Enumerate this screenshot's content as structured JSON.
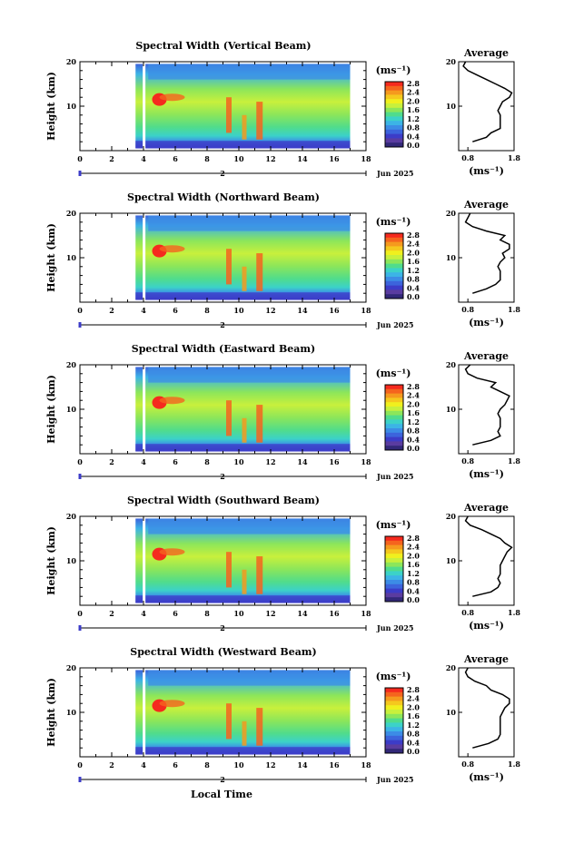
{
  "figure": {
    "colorbar_unit": "(ms⁻¹)",
    "colorbar_ticks": [
      "2.8",
      "2.4",
      "2.0",
      "1.6",
      "1.2",
      "0.8",
      "0.4",
      "0.0"
    ],
    "colorbar_colors": [
      "#f52a1e",
      "#f5641e",
      "#f59a1e",
      "#f5c81e",
      "#f0f01e",
      "#c8f03c",
      "#8ce65a",
      "#50dc8c",
      "#3cd2c8",
      "#3cb4e6",
      "#3c8ce6",
      "#3c64dc",
      "#3c3cc8",
      "#5a3ca0",
      "#322878"
    ],
    "time_axis_ticks": [
      "0",
      "2",
      "4",
      "6",
      "8",
      "10",
      "12",
      "14",
      "16",
      "18"
    ],
    "date_label": "Jun 2025",
    "axis_marker": "2",
    "ylabel": "Height (km)",
    "y_ticks": [
      "20",
      "10"
    ],
    "avg_title": "Average",
    "avg_ticks": [
      "0.8",
      "1.8"
    ],
    "avg_xlabel": "(ms⁻¹)",
    "xlabel": "Local Time"
  },
  "chart_data": [
    {
      "type": "heatmap",
      "title": "Spectral Width (Vertical Beam)",
      "x_range": [
        0,
        18
      ],
      "y_range": [
        0,
        20
      ],
      "value_range": [
        0,
        2.8
      ],
      "avg_profile": {
        "x_range": [
          0.6,
          1.8
        ],
        "y_range": [
          0,
          20
        ],
        "height": [
          2,
          3,
          4,
          5,
          6,
          7,
          8,
          9,
          10,
          11,
          12,
          13,
          14,
          15,
          16,
          17,
          18,
          19,
          20
        ],
        "width": [
          0.9,
          1.2,
          1.3,
          1.5,
          1.5,
          1.5,
          1.5,
          1.45,
          1.5,
          1.55,
          1.7,
          1.75,
          1.6,
          1.4,
          1.2,
          1.0,
          0.8,
          0.7,
          0.75
        ]
      }
    },
    {
      "type": "heatmap",
      "title": "Spectral Width (Northward Beam)",
      "x_range": [
        0,
        18
      ],
      "y_range": [
        0,
        20
      ],
      "value_range": [
        0,
        2.8
      ],
      "avg_profile": {
        "x_range": [
          0.6,
          1.8
        ],
        "y_range": [
          0,
          20
        ],
        "height": [
          2,
          3,
          4,
          5,
          6,
          7,
          8,
          9,
          10,
          11,
          12,
          13,
          14,
          15,
          16,
          17,
          18,
          19,
          20
        ],
        "width": [
          0.9,
          1.2,
          1.4,
          1.5,
          1.5,
          1.5,
          1.45,
          1.5,
          1.6,
          1.55,
          1.7,
          1.7,
          1.5,
          1.6,
          1.2,
          0.9,
          0.75,
          0.8,
          0.85
        ]
      }
    },
    {
      "type": "heatmap",
      "title": "Spectral Width (Eastward Beam)",
      "x_range": [
        0,
        18
      ],
      "y_range": [
        0,
        20
      ],
      "value_range": [
        0,
        2.8
      ],
      "avg_profile": {
        "x_range": [
          0.6,
          1.8
        ],
        "y_range": [
          0,
          20
        ],
        "height": [
          2,
          3,
          4,
          5,
          6,
          7,
          8,
          9,
          10,
          11,
          12,
          13,
          14,
          15,
          16,
          17,
          18,
          19,
          20
        ],
        "width": [
          0.9,
          1.3,
          1.5,
          1.45,
          1.5,
          1.5,
          1.5,
          1.45,
          1.5,
          1.6,
          1.65,
          1.7,
          1.5,
          1.3,
          1.4,
          1.0,
          0.8,
          0.75,
          0.85
        ]
      }
    },
    {
      "type": "heatmap",
      "title": "Spectral Width (Southward Beam)",
      "x_range": [
        0,
        18
      ],
      "y_range": [
        0,
        20
      ],
      "value_range": [
        0,
        2.8
      ],
      "avg_profile": {
        "x_range": [
          0.6,
          1.8
        ],
        "y_range": [
          0,
          20
        ],
        "height": [
          2,
          3,
          4,
          5,
          6,
          7,
          8,
          9,
          10,
          11,
          12,
          13,
          14,
          15,
          16,
          17,
          18,
          19,
          20
        ],
        "width": [
          0.9,
          1.3,
          1.45,
          1.5,
          1.45,
          1.5,
          1.5,
          1.5,
          1.55,
          1.6,
          1.65,
          1.75,
          1.6,
          1.5,
          1.3,
          1.1,
          0.85,
          0.75,
          0.8
        ]
      }
    },
    {
      "type": "heatmap",
      "title": "Spectral Width (Westward Beam)",
      "x_range": [
        0,
        18
      ],
      "y_range": [
        0,
        20
      ],
      "value_range": [
        0,
        2.8
      ],
      "avg_profile": {
        "x_range": [
          0.6,
          1.8
        ],
        "y_range": [
          0,
          20
        ],
        "height": [
          2,
          3,
          4,
          5,
          6,
          7,
          8,
          9,
          10,
          11,
          12,
          13,
          14,
          15,
          16,
          17,
          18,
          19,
          20
        ],
        "width": [
          0.9,
          1.25,
          1.45,
          1.5,
          1.5,
          1.5,
          1.5,
          1.5,
          1.55,
          1.6,
          1.7,
          1.7,
          1.55,
          1.3,
          1.2,
          0.95,
          0.8,
          0.75,
          0.8
        ]
      }
    }
  ]
}
